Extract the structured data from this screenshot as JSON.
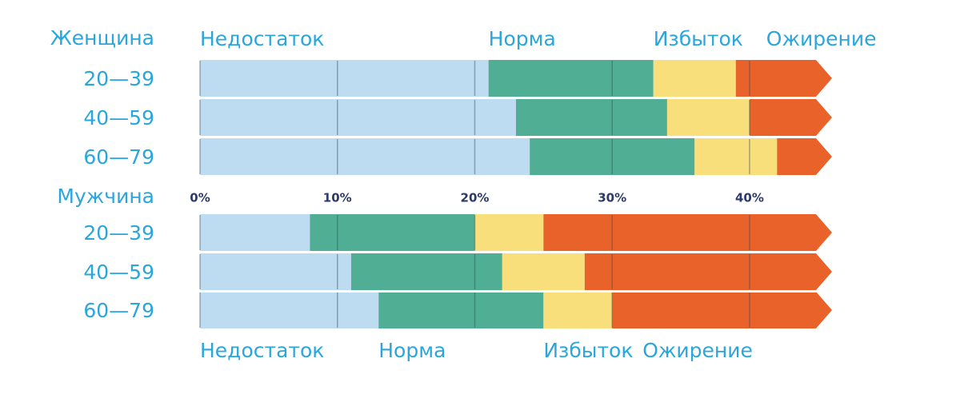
{
  "chart_data": [
    {
      "type": "bar",
      "orientation": "horizontal",
      "stacked": true,
      "title": "Женщина",
      "categories": [
        "20—39",
        "40—59",
        "60—79"
      ],
      "series": [
        {
          "name": "Недостаток",
          "color": "#bddcf2",
          "values": [
            21,
            23,
            24
          ]
        },
        {
          "name": "Норма",
          "color": "#4fae93",
          "values": [
            12,
            11,
            12
          ]
        },
        {
          "name": "Избыток",
          "color": "#f8df7c",
          "values": [
            6,
            6,
            6
          ]
        },
        {
          "name": "Ожирение",
          "color": "#e8622a",
          "values": [
            7,
            6,
            4
          ]
        }
      ],
      "xlim": [
        0,
        46
      ],
      "legend": "top"
    },
    {
      "type": "bar",
      "orientation": "horizontal",
      "stacked": true,
      "title": "Мужчина",
      "categories": [
        "20—39",
        "40—59",
        "60—79"
      ],
      "series": [
        {
          "name": "Недостаток",
          "color": "#bddcf2",
          "values": [
            8,
            11,
            13
          ]
        },
        {
          "name": "Норма",
          "color": "#4fae93",
          "values": [
            12,
            11,
            12
          ]
        },
        {
          "name": "Избыток",
          "color": "#f8df7c",
          "values": [
            5,
            6,
            5
          ]
        },
        {
          "name": "Ожирение",
          "color": "#e8622a",
          "values": [
            21,
            18,
            16
          ]
        }
      ],
      "xlim": [
        0,
        46
      ],
      "xticks": [
        {
          "value": 0,
          "label": "0%"
        },
        {
          "value": 10,
          "label": "10%"
        },
        {
          "value": 20,
          "label": "20%"
        },
        {
          "value": 30,
          "label": "30%"
        },
        {
          "value": 40,
          "label": "40%"
        }
      ],
      "legend": "bottom"
    }
  ]
}
